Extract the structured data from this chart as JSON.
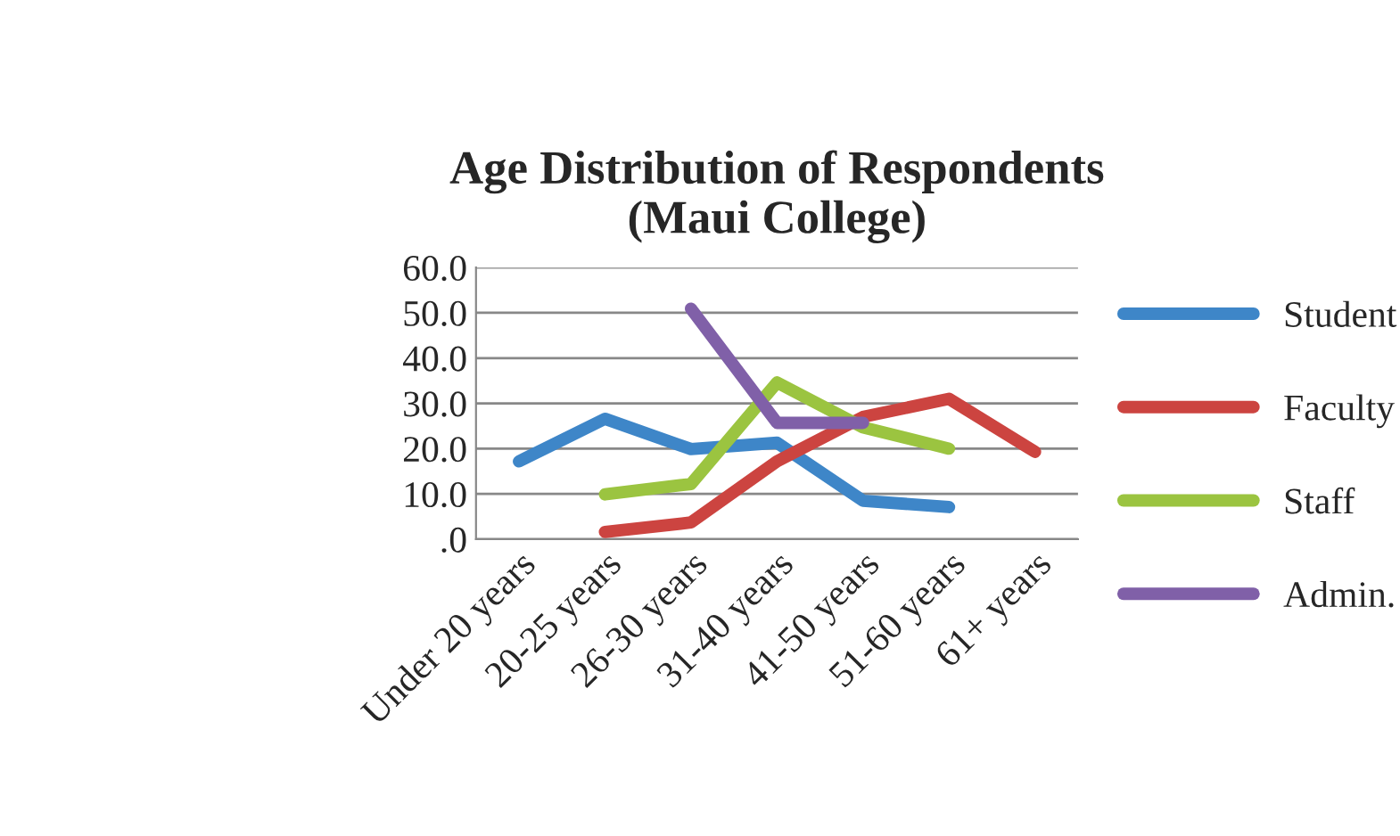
{
  "chart_data": {
    "type": "line",
    "title": "Age Distribution of Respondents\n(Maui College)",
    "categories": [
      "Under 20 years",
      "20-25 years",
      "26-30 years",
      "31-40 years",
      "41-50 years",
      "51-60 years",
      "61+ years"
    ],
    "series": [
      {
        "name": "Student",
        "color": "#3e86c8",
        "values": [
          17.2,
          26.6,
          19.9,
          21.3,
          8.5,
          7.1,
          null
        ]
      },
      {
        "name": "Faculty",
        "color": "#cc4440",
        "values": [
          null,
          1.6,
          3.7,
          17.2,
          27,
          31,
          19.3
        ]
      },
      {
        "name": "Staff",
        "color": "#9bc440",
        "values": [
          null,
          9.9,
          12.2,
          34.6,
          24.7,
          20,
          null
        ]
      },
      {
        "name": "Admin.",
        "color": "#8060a8",
        "values": [
          null,
          null,
          50.9,
          25.7,
          25.7,
          null,
          null
        ]
      }
    ],
    "ylim": [
      0,
      60
    ],
    "yticks": [
      {
        "value": 0,
        "label": ".0"
      },
      {
        "value": 10,
        "label": "10.0"
      },
      {
        "value": 20,
        "label": "20.0"
      },
      {
        "value": 30,
        "label": "30.0"
      },
      {
        "value": 40,
        "label": "40.0"
      },
      {
        "value": 50,
        "label": "50.0"
      },
      {
        "value": 60,
        "label": "60.0"
      }
    ],
    "grid": "y",
    "legend": "right",
    "marker": "none",
    "line_style": "solid"
  }
}
